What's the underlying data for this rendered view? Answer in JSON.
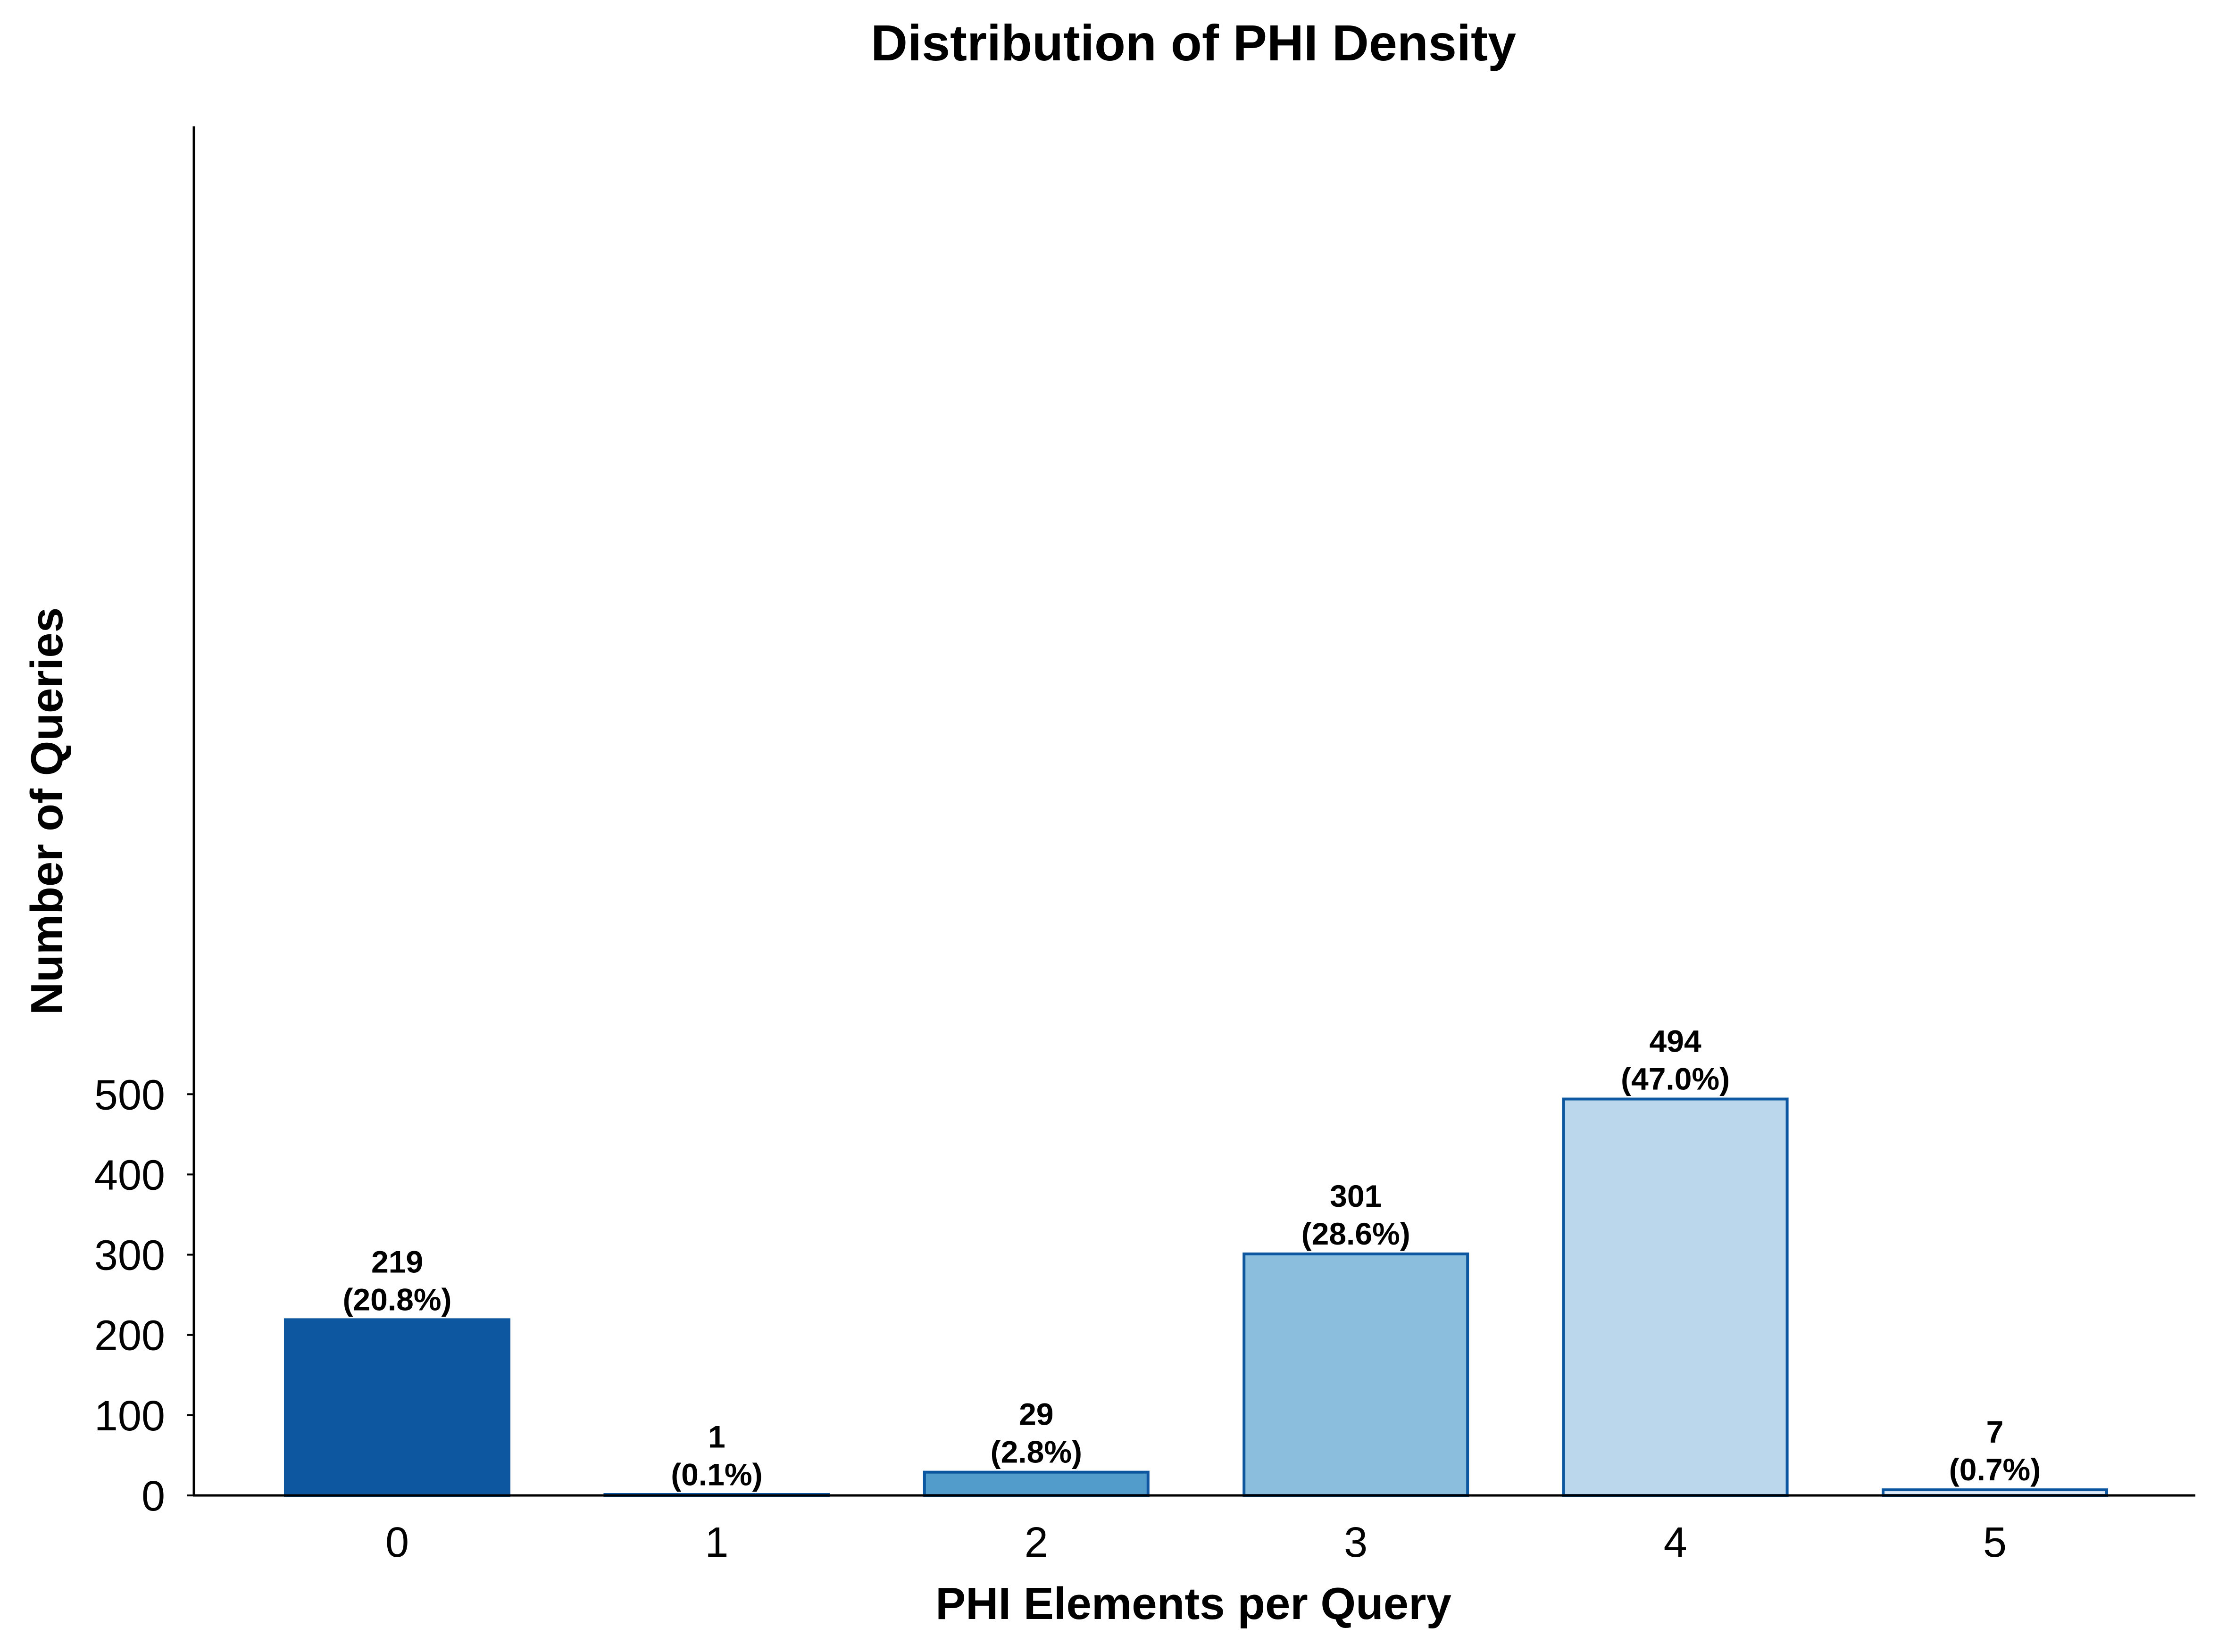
{
  "chart_data": {
    "type": "bar",
    "title": "Distribution of PHI Density",
    "xlabel": "PHI Elements per Query",
    "ylabel": "Number of Queries",
    "categories": [
      "0",
      "1",
      "2",
      "3",
      "4",
      "5"
    ],
    "values": [
      219,
      1,
      29,
      301,
      494,
      7
    ],
    "value_labels": [
      "219",
      "1",
      "29",
      "301",
      "494",
      "7"
    ],
    "percent_labels": [
      "(20.8%)",
      "(0.1%)",
      "(2.8%)",
      "(28.6%)",
      "(47.0%)",
      "(0.7%)"
    ],
    "bar_colors": [
      "#0d56a0",
      "#0d56a0",
      "#529ccc",
      "#8bbedd",
      "#bbd7eb",
      "#dce9f5"
    ],
    "bar_edge_color": "#0d56a0",
    "ylim": [
      0,
      568
    ],
    "yticks": [
      0,
      100,
      200,
      300,
      400,
      500
    ],
    "ytick_labels": [
      "0",
      "100",
      "200",
      "300",
      "400",
      "500"
    ],
    "grid": false,
    "legend": "none"
  }
}
